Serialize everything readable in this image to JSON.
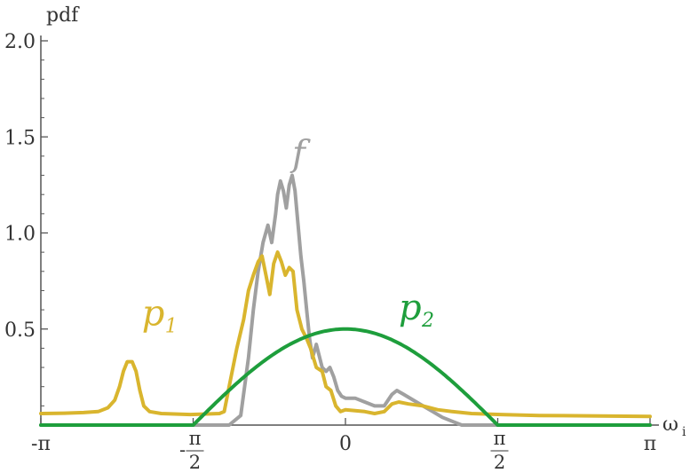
{
  "chart_data": {
    "type": "line",
    "title": "",
    "xlabel": "ω",
    "xlabel_sub": "i",
    "ylabel": "pdf",
    "xlim": [
      -3.14159,
      3.14159
    ],
    "ylim": [
      0,
      2.0
    ],
    "yticks": [
      {
        "value": 0.5,
        "label": "0.5"
      },
      {
        "value": 1.0,
        "label": "1.0"
      },
      {
        "value": 1.5,
        "label": "1.5"
      },
      {
        "value": 2.0,
        "label": "2.0"
      }
    ],
    "xticks": [
      {
        "value": -3.14159,
        "label": "-π"
      },
      {
        "value": -1.5708,
        "sign": "-",
        "num": "π",
        "den": "2"
      },
      {
        "value": 0,
        "label": "0"
      },
      {
        "value": 1.5708,
        "num": "π",
        "den": "2"
      },
      {
        "value": 3.14159,
        "label": "π"
      }
    ],
    "series": [
      {
        "name": "f",
        "color": "#a0a0a0",
        "label_at": [
          -0.55,
          1.35
        ],
        "points": [
          [
            -3.14159,
            0
          ],
          [
            -1.6,
            0
          ],
          [
            -1.2,
            0
          ],
          [
            -1.08,
            0.05
          ],
          [
            -1.0,
            0.35
          ],
          [
            -0.95,
            0.6
          ],
          [
            -0.9,
            0.8
          ],
          [
            -0.85,
            0.95
          ],
          [
            -0.8,
            1.04
          ],
          [
            -0.76,
            0.95
          ],
          [
            -0.72,
            1.1
          ],
          [
            -0.7,
            1.2
          ],
          [
            -0.67,
            1.27
          ],
          [
            -0.64,
            1.22
          ],
          [
            -0.61,
            1.13
          ],
          [
            -0.58,
            1.25
          ],
          [
            -0.55,
            1.3
          ],
          [
            -0.52,
            1.22
          ],
          [
            -0.49,
            1.05
          ],
          [
            -0.46,
            0.88
          ],
          [
            -0.43,
            0.75
          ],
          [
            -0.4,
            0.6
          ],
          [
            -0.37,
            0.45
          ],
          [
            -0.34,
            0.35
          ],
          [
            -0.3,
            0.42
          ],
          [
            -0.27,
            0.36
          ],
          [
            -0.24,
            0.3
          ],
          [
            -0.2,
            0.28
          ],
          [
            -0.16,
            0.3
          ],
          [
            -0.12,
            0.25
          ],
          [
            -0.08,
            0.18
          ],
          [
            -0.04,
            0.15
          ],
          [
            0.0,
            0.14
          ],
          [
            0.1,
            0.14
          ],
          [
            0.2,
            0.12
          ],
          [
            0.3,
            0.1
          ],
          [
            0.4,
            0.1
          ],
          [
            0.48,
            0.16
          ],
          [
            0.53,
            0.18
          ],
          [
            0.6,
            0.16
          ],
          [
            0.7,
            0.13
          ],
          [
            0.8,
            0.1
          ],
          [
            0.9,
            0.07
          ],
          [
            1.0,
            0.04
          ],
          [
            1.1,
            0.02
          ],
          [
            1.2,
            0.0
          ],
          [
            3.14159,
            0
          ]
        ]
      },
      {
        "name": "p",
        "name_sub": "1",
        "color": "#d9b52e",
        "label_at": [
          -2.1,
          0.52
        ],
        "points": [
          [
            -3.14159,
            0.06
          ],
          [
            -2.9,
            0.062
          ],
          [
            -2.7,
            0.065
          ],
          [
            -2.55,
            0.07
          ],
          [
            -2.45,
            0.09
          ],
          [
            -2.38,
            0.13
          ],
          [
            -2.33,
            0.2
          ],
          [
            -2.29,
            0.28
          ],
          [
            -2.25,
            0.33
          ],
          [
            -2.2,
            0.33
          ],
          [
            -2.16,
            0.28
          ],
          [
            -2.12,
            0.18
          ],
          [
            -2.08,
            0.1
          ],
          [
            -2.02,
            0.07
          ],
          [
            -1.9,
            0.06
          ],
          [
            -1.6,
            0.055
          ],
          [
            -1.3,
            0.06
          ],
          [
            -1.25,
            0.07
          ],
          [
            -1.2,
            0.2
          ],
          [
            -1.12,
            0.4
          ],
          [
            -1.05,
            0.55
          ],
          [
            -1.0,
            0.7
          ],
          [
            -0.95,
            0.78
          ],
          [
            -0.9,
            0.85
          ],
          [
            -0.86,
            0.88
          ],
          [
            -0.82,
            0.78
          ],
          [
            -0.78,
            0.68
          ],
          [
            -0.74,
            0.84
          ],
          [
            -0.7,
            0.9
          ],
          [
            -0.66,
            0.85
          ],
          [
            -0.62,
            0.78
          ],
          [
            -0.58,
            0.82
          ],
          [
            -0.54,
            0.8
          ],
          [
            -0.5,
            0.6
          ],
          [
            -0.45,
            0.5
          ],
          [
            -0.4,
            0.45
          ],
          [
            -0.36,
            0.4
          ],
          [
            -0.3,
            0.3
          ],
          [
            -0.24,
            0.28
          ],
          [
            -0.2,
            0.2
          ],
          [
            -0.15,
            0.18
          ],
          [
            -0.1,
            0.1
          ],
          [
            -0.05,
            0.07
          ],
          [
            0.0,
            0.08
          ],
          [
            0.1,
            0.075
          ],
          [
            0.2,
            0.07
          ],
          [
            0.3,
            0.06
          ],
          [
            0.4,
            0.07
          ],
          [
            0.48,
            0.11
          ],
          [
            0.55,
            0.12
          ],
          [
            0.65,
            0.11
          ],
          [
            0.8,
            0.1
          ],
          [
            0.95,
            0.08
          ],
          [
            1.1,
            0.07
          ],
          [
            1.3,
            0.06
          ],
          [
            1.6,
            0.055
          ],
          [
            2.0,
            0.05
          ],
          [
            2.5,
            0.048
          ],
          [
            3.14159,
            0.045
          ]
        ]
      },
      {
        "name": "p",
        "name_sub": "2",
        "color": "#1e9e3c",
        "label_at": [
          0.55,
          0.55
        ],
        "function": "0.5*cos(x) for |x|<=pi/2 else 0"
      }
    ]
  }
}
